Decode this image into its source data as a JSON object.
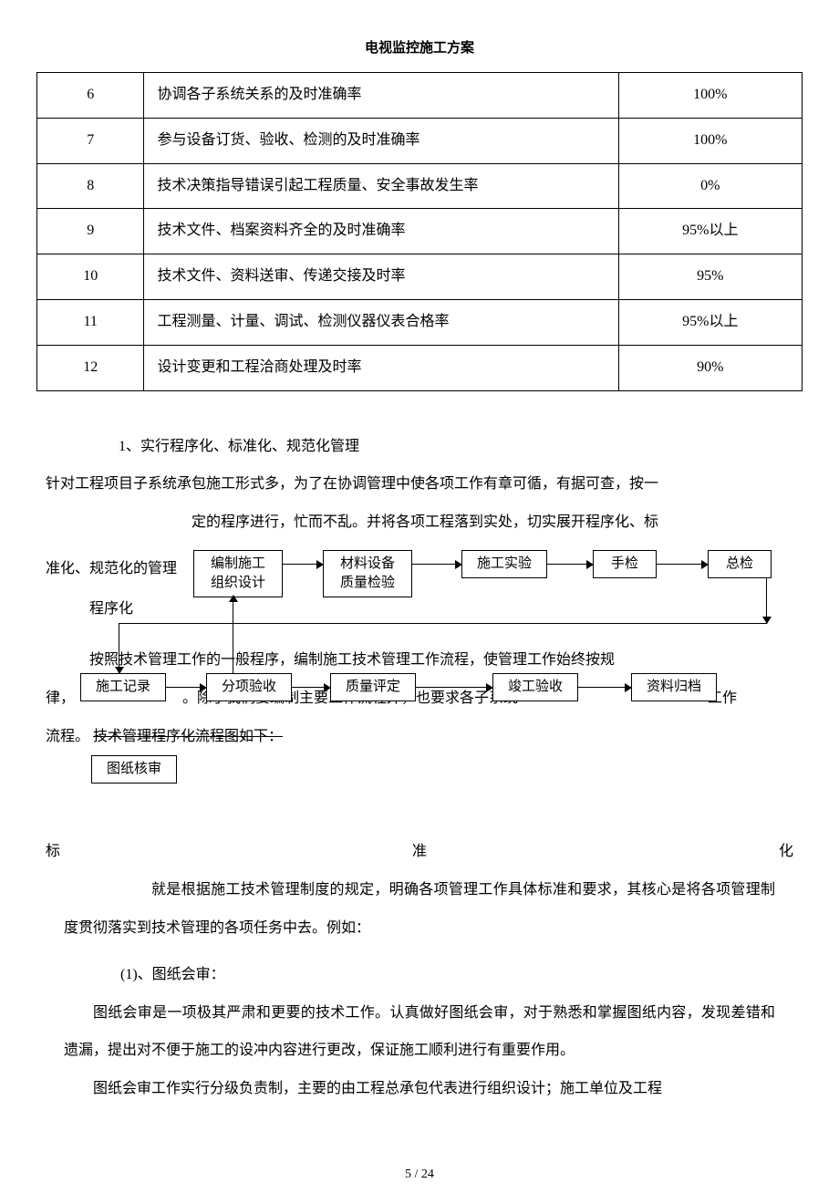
{
  "doc": {
    "title": "电视监控施工方案",
    "page": "5 / 24"
  },
  "table": {
    "rows": [
      {
        "num": "6",
        "desc": "协调各子系统关系的及时准确率",
        "val": "100%"
      },
      {
        "num": "7",
        "desc": "参与设备订货、验收、检测的及时准确率",
        "val": "100%"
      },
      {
        "num": "8",
        "desc": "技术决策指导错误引起工程质量、安全事故发生率",
        "val": "0%"
      },
      {
        "num": "9",
        "desc": "技术文件、档案资料齐全的及时准确率",
        "val": "95%以上"
      },
      {
        "num": "10",
        "desc": "技术文件、资料送审、传递交接及时率",
        "val": "95%"
      },
      {
        "num": "11",
        "desc": "工程测量、计量、调试、检测仪器仪表合格率",
        "val": "95%以上"
      },
      {
        "num": "12",
        "desc": "设计变更和工程洽商处理及时率",
        "val": "90%"
      }
    ]
  },
  "body": {
    "h1": "1、实行程序化、标准化、规范化管理",
    "p1a": "针对工程项目子系统承包施工形式多，为了在协调管理中使各项工作有章可循，有据可查，按一",
    "p1b": "定的程序进行，忙而不乱。并将各项工程落到实处，切实展开程序化、标",
    "p1c": "准化、规范化的管理",
    "p1d": "程序化",
    "p2a": "按照技术管理工作的一般程序，编制施工技术管理工作流程，使管理工作始终按规",
    "p2b_pre": "律，",
    "p2b_mid": "。除了我们要编制主要工作流程外，也要求各子系统",
    "p2b_post": "工作",
    "p2c": "流程。",
    "p2c_strike": "技术管理程序化流程图如下：",
    "spread_a": "标",
    "spread_b": "准",
    "spread_c": "化",
    "p3": "就是根据施工技术管理制度的规定，明确各项管理工作具体标准和要求，其核心是将各项管理制度贯彻落实到技术管理的各项任务中去。例如：",
    "h2": "(1)、图纸会审：",
    "p4": "图纸会审是一项极其严肃和更要的技术工作。认真做好图纸会审，对于熟悉和掌握图纸内容，发现差错和遗漏，提出对不便于施工的设冲内容进行更改，保证施工顺利进行有重要作用。",
    "p5": "图纸会审工作实行分级负责制，主要的由工程总承包代表进行组织设计；施工单位及工程"
  },
  "flow": {
    "row1": [
      {
        "id": "n1",
        "label": "编制施工\n组织设计"
      },
      {
        "id": "n2",
        "label": "材料设备\n质量检验"
      },
      {
        "id": "n3",
        "label": "施工实验"
      },
      {
        "id": "n4",
        "label": "手检"
      },
      {
        "id": "n5",
        "label": "总检"
      }
    ],
    "row2": [
      {
        "id": "n6",
        "label": "施工记录"
      },
      {
        "id": "n7",
        "label": "分项验收"
      },
      {
        "id": "n8",
        "label": "质量评定"
      },
      {
        "id": "n9",
        "label": "竣工验收"
      },
      {
        "id": "n10",
        "label": "资料归档"
      }
    ],
    "row3": [
      {
        "id": "n11",
        "label": "图纸核审"
      }
    ]
  }
}
